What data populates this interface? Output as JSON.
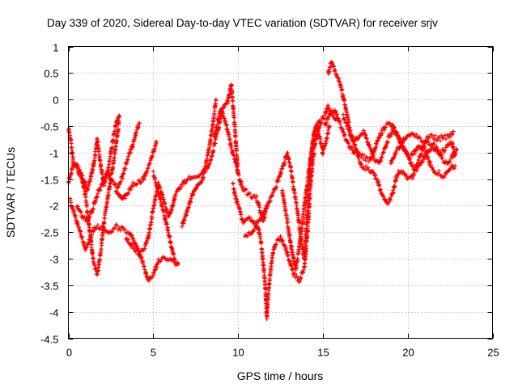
{
  "chart_data": {
    "type": "scatter",
    "title": "Day 339 of 2020, Sidereal Day-to-day VTEC variation (SDTVAR) for receiver srjv",
    "xlabel": "GPS time / hours",
    "ylabel": "SDTVAR / TECUs",
    "xlim": [
      0,
      25
    ],
    "ylim": [
      -4.5,
      1
    ],
    "x_ticks": [
      "0",
      "5",
      "10",
      "15",
      "20",
      "25"
    ],
    "y_ticks": [
      "1",
      "0.5",
      "0",
      "-0.5",
      "-1",
      "-1.5",
      "-2",
      "-2.5",
      "-3",
      "-3.5",
      "-4",
      "-4.5"
    ],
    "x_tick_values": [
      0,
      5,
      10,
      15,
      20,
      25
    ],
    "y_tick_values": [
      1,
      0.5,
      0,
      -0.5,
      -1,
      -1.5,
      -2,
      -2.5,
      -3,
      -3.5,
      -4,
      -4.5
    ],
    "grid": true,
    "marker": "+",
    "marker_color": "#ff0000",
    "series": [
      {
        "points": [
          [
            0.0,
            -0.55
          ],
          [
            0.15,
            -0.8
          ],
          [
            0.3,
            -1.2
          ],
          [
            0.5,
            -1.3
          ],
          [
            0.8,
            -1.5
          ],
          [
            1.0,
            -1.8
          ],
          [
            1.3,
            -2.6
          ],
          [
            1.5,
            -3.1
          ],
          [
            1.7,
            -3.3
          ],
          [
            1.9,
            -2.9
          ],
          [
            2.1,
            -2.3
          ],
          [
            2.3,
            -1.9
          ],
          [
            2.5,
            -1.5
          ],
          [
            2.7,
            -1.1
          ],
          [
            2.9,
            -0.65
          ],
          [
            3.0,
            -0.3
          ]
        ]
      },
      {
        "points": [
          [
            0.1,
            -1.9
          ],
          [
            0.3,
            -2.1
          ],
          [
            0.5,
            -2.3
          ],
          [
            0.8,
            -2.6
          ],
          [
            1.0,
            -2.8
          ],
          [
            1.2,
            -2.7
          ],
          [
            1.4,
            -2.5
          ],
          [
            1.6,
            -2.4
          ],
          [
            2.0,
            -2.4
          ],
          [
            2.4,
            -2.5
          ],
          [
            2.8,
            -2.4
          ],
          [
            3.2,
            -2.45
          ],
          [
            3.6,
            -2.5
          ],
          [
            3.9,
            -2.7
          ],
          [
            4.2,
            -2.9
          ],
          [
            4.5,
            -3.2
          ],
          [
            4.7,
            -3.4
          ],
          [
            5.0,
            -3.3
          ],
          [
            5.3,
            -3.05
          ],
          [
            5.6,
            -3.0
          ],
          [
            6.0,
            -3.0
          ],
          [
            6.4,
            -3.1
          ]
        ]
      },
      {
        "points": [
          [
            0.0,
            -1.6
          ],
          [
            0.3,
            -1.2
          ],
          [
            0.6,
            -1.3
          ],
          [
            0.9,
            -1.5
          ],
          [
            1.1,
            -1.7
          ],
          [
            1.3,
            -1.5
          ],
          [
            1.5,
            -1.2
          ],
          [
            1.7,
            -0.75
          ],
          [
            1.9,
            -1.25
          ],
          [
            2.1,
            -1.6
          ],
          [
            2.3,
            -1.4
          ],
          [
            2.5,
            -1.0
          ],
          [
            2.7,
            -0.6
          ],
          [
            2.9,
            -0.35
          ]
        ]
      },
      {
        "points": [
          [
            0.5,
            -2.0
          ],
          [
            0.8,
            -2.2
          ],
          [
            1.1,
            -2.3
          ],
          [
            1.4,
            -2.1
          ],
          [
            1.7,
            -1.8
          ],
          [
            2.0,
            -1.6
          ],
          [
            2.3,
            -1.35
          ],
          [
            2.6,
            -1.55
          ],
          [
            2.9,
            -1.65
          ],
          [
            3.2,
            -1.45
          ],
          [
            3.5,
            -1.1
          ],
          [
            3.8,
            -0.85
          ],
          [
            4.0,
            -0.6
          ],
          [
            4.2,
            -0.45
          ]
        ]
      },
      {
        "points": [
          [
            2.8,
            -1.7
          ],
          [
            3.2,
            -1.9
          ],
          [
            3.5,
            -1.75
          ],
          [
            3.8,
            -1.6
          ],
          [
            4.2,
            -1.55
          ],
          [
            4.4,
            -1.5
          ],
          [
            4.7,
            -1.3
          ],
          [
            5.0,
            -1.0
          ],
          [
            5.2,
            -0.8
          ]
        ]
      },
      {
        "points": [
          [
            3.4,
            -2.6
          ],
          [
            3.8,
            -2.8
          ],
          [
            4.2,
            -2.9
          ],
          [
            4.5,
            -2.8
          ],
          [
            4.7,
            -2.6
          ],
          [
            4.9,
            -2.25
          ],
          [
            5.1,
            -1.9
          ],
          [
            5.3,
            -1.6
          ],
          [
            5.5,
            -1.75
          ],
          [
            5.7,
            -2.0
          ],
          [
            5.9,
            -2.2
          ],
          [
            6.1,
            -2.05
          ],
          [
            6.3,
            -1.8
          ],
          [
            6.6,
            -1.65
          ],
          [
            7.0,
            -1.5
          ],
          [
            7.4,
            -1.45
          ],
          [
            7.8,
            -1.4
          ],
          [
            8.2,
            -1.3
          ],
          [
            8.5,
            -1.0
          ],
          [
            8.8,
            -0.6
          ],
          [
            9.0,
            -0.3
          ],
          [
            9.2,
            -0.1
          ],
          [
            9.4,
            -0.05
          ],
          [
            9.6,
            0.3
          ],
          [
            9.8,
            -0.5
          ],
          [
            10.0,
            -1.4
          ],
          [
            10.3,
            -1.7
          ],
          [
            10.7,
            -1.8
          ],
          [
            11.1,
            -1.85
          ],
          [
            11.3,
            -2.1
          ],
          [
            11.5,
            -2.3
          ],
          [
            11.7,
            -2.0
          ]
        ]
      },
      {
        "points": [
          [
            5.0,
            -1.4
          ],
          [
            5.3,
            -1.7
          ],
          [
            5.6,
            -2.1
          ],
          [
            5.9,
            -2.5
          ],
          [
            6.1,
            -2.8
          ],
          [
            6.3,
            -3.1
          ],
          [
            6.5,
            -3.1
          ]
        ]
      },
      {
        "points": [
          [
            6.7,
            -2.4
          ],
          [
            7.0,
            -2.1
          ],
          [
            7.3,
            -1.8
          ],
          [
            7.6,
            -1.6
          ],
          [
            7.9,
            -1.5
          ],
          [
            8.1,
            -1.2
          ],
          [
            8.3,
            -0.9
          ],
          [
            8.5,
            -0.5
          ],
          [
            8.7,
            0.0
          ]
        ]
      },
      {
        "points": [
          [
            8.6,
            -0.7
          ],
          [
            8.8,
            -0.4
          ],
          [
            9.0,
            -0.2
          ],
          [
            9.2,
            -0.35
          ],
          [
            9.4,
            -0.6
          ],
          [
            9.6,
            -0.9
          ],
          [
            9.8,
            -1.1
          ],
          [
            10.0,
            -1.4
          ]
        ]
      },
      {
        "points": [
          [
            9.7,
            -1.6
          ],
          [
            9.9,
            -1.9
          ],
          [
            10.1,
            -2.1
          ],
          [
            10.3,
            -2.3
          ],
          [
            10.6,
            -2.2
          ],
          [
            10.9,
            -2.3
          ],
          [
            11.2,
            -2.4
          ],
          [
            11.4,
            -2.8
          ],
          [
            11.6,
            -3.5
          ],
          [
            11.7,
            -4.1
          ],
          [
            11.8,
            -3.6
          ],
          [
            12.0,
            -3.0
          ],
          [
            12.2,
            -2.7
          ],
          [
            12.5,
            -2.6
          ],
          [
            12.8,
            -2.8
          ],
          [
            13.0,
            -3.0
          ],
          [
            13.3,
            -3.3
          ],
          [
            13.6,
            -3.4
          ],
          [
            13.9,
            -3.2
          ],
          [
            14.1,
            -2.5
          ],
          [
            14.3,
            -1.5
          ],
          [
            14.5,
            -0.9
          ],
          [
            14.7,
            -0.6
          ],
          [
            14.9,
            -0.4
          ],
          [
            15.1,
            -0.3
          ],
          [
            15.3,
            -0.15
          ],
          [
            15.6,
            -0.3
          ],
          [
            15.9,
            -0.4
          ]
        ]
      },
      {
        "points": [
          [
            10.4,
            -2.6
          ],
          [
            10.8,
            -2.5
          ],
          [
            11.2,
            -2.3
          ],
          [
            11.6,
            -2.1
          ],
          [
            12.0,
            -1.8
          ],
          [
            12.4,
            -1.5
          ],
          [
            12.7,
            -1.2
          ],
          [
            12.9,
            -1.0
          ],
          [
            13.1,
            -1.3
          ],
          [
            13.3,
            -1.7
          ],
          [
            13.5,
            -2.1
          ],
          [
            13.7,
            -2.6
          ],
          [
            13.9,
            -3.0
          ],
          [
            14.1,
            -2.0
          ],
          [
            14.3,
            -1.1
          ],
          [
            14.5,
            -0.6
          ],
          [
            14.8,
            -0.4
          ]
        ]
      },
      {
        "points": [
          [
            12.6,
            -1.7
          ],
          [
            12.8,
            -2.1
          ],
          [
            13.0,
            -2.5
          ],
          [
            13.2,
            -2.9
          ],
          [
            13.4,
            -3.2
          ],
          [
            13.6,
            -2.8
          ],
          [
            13.8,
            -2.3
          ],
          [
            14.0,
            -1.8
          ],
          [
            14.2,
            -1.3
          ],
          [
            14.4,
            -0.8
          ],
          [
            14.6,
            -0.5
          ],
          [
            14.8,
            -0.7
          ],
          [
            15.0,
            -1.0
          ],
          [
            15.2,
            -0.75
          ],
          [
            15.4,
            -0.5
          ]
        ]
      },
      {
        "points": [
          [
            15.3,
            0.5
          ],
          [
            15.5,
            0.7
          ],
          [
            15.7,
            0.55
          ],
          [
            15.9,
            0.4
          ],
          [
            16.1,
            0.2
          ],
          [
            16.3,
            -0.1
          ],
          [
            16.5,
            -0.4
          ],
          [
            16.7,
            -0.7
          ],
          [
            16.9,
            -0.9
          ],
          [
            17.1,
            -1.1
          ],
          [
            17.3,
            -1.25
          ],
          [
            17.6,
            -1.3
          ],
          [
            17.9,
            -1.35
          ],
          [
            18.2,
            -1.5
          ],
          [
            18.5,
            -1.8
          ],
          [
            18.8,
            -1.95
          ],
          [
            19.1,
            -1.8
          ],
          [
            19.3,
            -1.5
          ],
          [
            19.5,
            -1.35
          ],
          [
            19.8,
            -1.4
          ],
          [
            20.0,
            -1.5
          ],
          [
            20.3,
            -1.45
          ],
          [
            20.6,
            -1.2
          ],
          [
            20.9,
            -0.9
          ],
          [
            21.2,
            -0.7
          ],
          [
            21.5,
            -0.7
          ],
          [
            21.8,
            -0.75
          ],
          [
            22.1,
            -0.7
          ],
          [
            22.4,
            -0.7
          ],
          [
            22.7,
            -0.6
          ]
        ]
      },
      {
        "points": [
          [
            15.1,
            -0.5
          ],
          [
            15.4,
            -0.3
          ],
          [
            15.7,
            -0.2
          ],
          [
            16.0,
            -0.45
          ],
          [
            16.3,
            -0.7
          ],
          [
            16.6,
            -0.9
          ],
          [
            16.9,
            -1.0
          ],
          [
            17.2,
            -1.05
          ],
          [
            17.5,
            -1.1
          ],
          [
            17.8,
            -1.15
          ],
          [
            18.0,
            -1.0
          ],
          [
            18.2,
            -0.8
          ],
          [
            18.4,
            -0.65
          ],
          [
            18.7,
            -0.5
          ],
          [
            19.0,
            -0.45
          ],
          [
            19.3,
            -0.6
          ],
          [
            19.6,
            -0.8
          ],
          [
            19.9,
            -1.0
          ],
          [
            20.2,
            -1.2
          ],
          [
            20.5,
            -1.35
          ],
          [
            20.8,
            -1.2
          ],
          [
            21.1,
            -1.0
          ],
          [
            21.4,
            -0.9
          ],
          [
            21.7,
            -0.95
          ],
          [
            22.0,
            -1.0
          ],
          [
            22.3,
            -0.9
          ],
          [
            22.6,
            -0.8
          ],
          [
            22.8,
            -1.05
          ]
        ]
      },
      {
        "points": [
          [
            16.2,
            -0.3
          ],
          [
            16.5,
            -0.55
          ],
          [
            16.8,
            -0.8
          ],
          [
            17.1,
            -0.7
          ],
          [
            17.4,
            -0.6
          ],
          [
            17.7,
            -0.85
          ],
          [
            18.0,
            -1.1
          ],
          [
            18.3,
            -1.2
          ],
          [
            18.6,
            -1.0
          ],
          [
            18.9,
            -0.7
          ],
          [
            19.2,
            -0.55
          ],
          [
            19.5,
            -0.75
          ],
          [
            19.8,
            -0.95
          ],
          [
            20.1,
            -1.1
          ],
          [
            20.4,
            -1.0
          ],
          [
            20.7,
            -0.85
          ],
          [
            21.0,
            -0.95
          ],
          [
            21.3,
            -1.2
          ],
          [
            21.6,
            -1.35
          ],
          [
            21.9,
            -1.4
          ],
          [
            22.2,
            -1.45
          ],
          [
            22.5,
            -1.3
          ],
          [
            22.8,
            -1.25
          ]
        ]
      },
      {
        "points": [
          [
            19.0,
            -1.2
          ],
          [
            19.3,
            -1.0
          ],
          [
            19.6,
            -0.85
          ],
          [
            19.9,
            -0.7
          ],
          [
            20.2,
            -0.65
          ],
          [
            20.5,
            -0.7
          ],
          [
            20.8,
            -0.75
          ],
          [
            21.1,
            -0.8
          ],
          [
            21.4,
            -0.85
          ],
          [
            21.7,
            -0.9
          ],
          [
            22.0,
            -1.1
          ],
          [
            22.3,
            -1.2
          ],
          [
            22.6,
            -1.1
          ],
          [
            22.9,
            -0.95
          ]
        ]
      }
    ]
  }
}
